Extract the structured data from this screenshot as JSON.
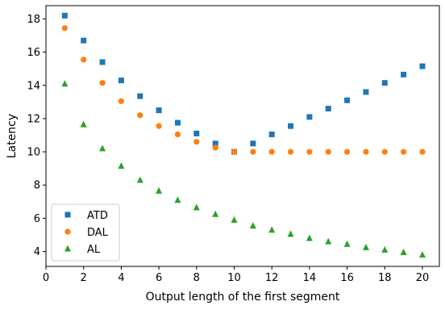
{
  "chart_data": {
    "type": "scatter",
    "xlabel": "Output length of the first segment",
    "ylabel": "Latency",
    "xlim": [
      0,
      20.9
    ],
    "ylim": [
      3.1,
      18.8
    ],
    "xticks": [
      0,
      2,
      4,
      6,
      8,
      10,
      12,
      14,
      16,
      18,
      20
    ],
    "yticks": [
      4,
      6,
      8,
      10,
      12,
      14,
      16,
      18
    ],
    "grid": false,
    "legend_position": "lower-left",
    "x": [
      1,
      2,
      3,
      4,
      5,
      6,
      7,
      8,
      9,
      10,
      11,
      12,
      13,
      14,
      15,
      16,
      17,
      18,
      19,
      20
    ],
    "series": [
      {
        "name": "ATD",
        "marker": "square",
        "color": "#1f77b4",
        "values": [
          18.2,
          16.7,
          15.4,
          14.3,
          13.35,
          12.5,
          11.75,
          11.1,
          10.5,
          10.0,
          10.5,
          11.05,
          11.55,
          12.1,
          12.6,
          13.1,
          13.6,
          14.15,
          14.65,
          15.15
        ]
      },
      {
        "name": "DAL",
        "marker": "circle",
        "color": "#ff7f0e",
        "values": [
          17.45,
          15.55,
          14.15,
          13.05,
          12.2,
          11.55,
          11.05,
          10.6,
          10.25,
          10.0,
          10.0,
          10.0,
          10.0,
          10.0,
          10.0,
          10.0,
          10.0,
          10.0,
          10.0,
          10.0
        ]
      },
      {
        "name": "AL",
        "marker": "triangle",
        "color": "#2ca02c",
        "values": [
          14.1,
          11.65,
          10.2,
          9.15,
          8.3,
          7.65,
          7.1,
          6.65,
          6.25,
          5.9,
          5.55,
          5.3,
          5.05,
          4.8,
          4.6,
          4.45,
          4.25,
          4.1,
          3.95,
          3.8
        ]
      }
    ]
  }
}
